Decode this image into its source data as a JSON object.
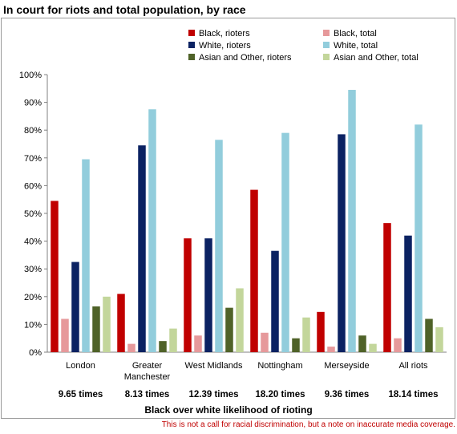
{
  "title": "In court for riots and total population, by race",
  "footnote": "This is not a call for racial discrimination, but a note on inaccurate media coverage.",
  "chart_data": {
    "type": "bar",
    "categories": [
      "London",
      "Greater Manchester",
      "West Midlands",
      "Nottingham",
      "Merseyside",
      "All riots"
    ],
    "category_sublabels": [
      "9.65 times",
      "8.13 times",
      "12.39 times",
      "18.20 times",
      "9.36 times",
      "18.14 times"
    ],
    "sublabel_caption": "Black over white likelihood of rioting",
    "ylim": [
      0,
      100
    ],
    "yticks": [
      0,
      10,
      20,
      30,
      40,
      50,
      60,
      70,
      80,
      90,
      100
    ],
    "ytick_labels": [
      "0%",
      "10%",
      "20%",
      "30%",
      "40%",
      "50%",
      "60%",
      "70%",
      "80%",
      "90%",
      "100%"
    ],
    "legend_position": "top",
    "series": [
      {
        "name": "Black, rioters",
        "color": "#c00000",
        "values": [
          54.5,
          21,
          41,
          58.5,
          14.5,
          46.5
        ]
      },
      {
        "name": "Black, total",
        "color": "#e6999b",
        "values": [
          12,
          3,
          6,
          7,
          2,
          5
        ]
      },
      {
        "name": "White, rioters",
        "color": "#0b2262",
        "values": [
          32.5,
          74.5,
          41,
          36.5,
          78.5,
          42
        ]
      },
      {
        "name": "White, total",
        "color": "#92cddc",
        "values": [
          69.5,
          87.5,
          76.5,
          79,
          94.5,
          82
        ]
      },
      {
        "name": "Asian and Other, rioters",
        "color": "#4f6228",
        "values": [
          16.5,
          4,
          16,
          5,
          6,
          12
        ]
      },
      {
        "name": "Asian and Other, total",
        "color": "#c3d69b",
        "values": [
          20,
          8.5,
          23,
          12.5,
          3,
          9
        ]
      }
    ]
  }
}
